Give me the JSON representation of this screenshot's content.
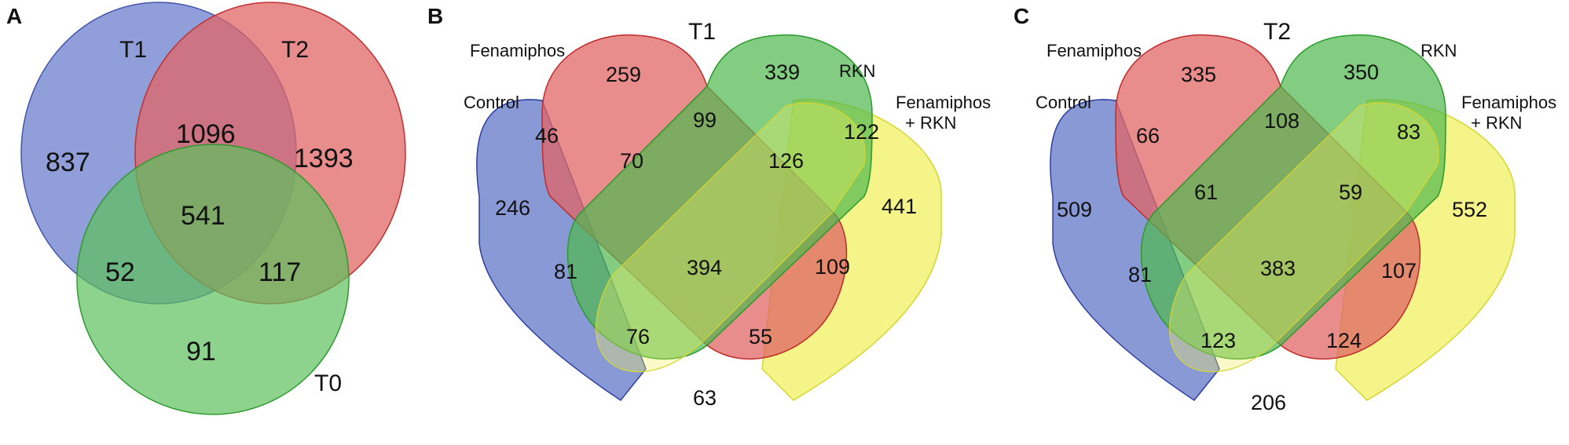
{
  "panels": [
    {
      "letter": "A",
      "sets": [
        "T1",
        "T2",
        "T0"
      ],
      "colors": {
        "T1": "#6b7fcc",
        "T2": "#e06666",
        "T0": "#59b959"
      },
      "regions": {
        "T1_only": "837",
        "T2_only": "1393",
        "T0_only": "91",
        "T1_T2": "1096",
        "T1_T0": "52",
        "T2_T0": "117",
        "T1_T2_T0": "541"
      }
    },
    {
      "letter": "B",
      "title": "T1",
      "sets": [
        "Control",
        "Fenamiphos",
        "RKN",
        "Fenamiphos",
        "+ RKN"
      ],
      "colors": {
        "control": "#6b7fcc",
        "fenamiphos": "#e06666",
        "rkn": "#59b959",
        "fen_rkn": "#f0f060"
      },
      "regions": {
        "control_only": "246",
        "fenamiphos_only": "259",
        "rkn_only": "339",
        "fen_rkn_only": "441",
        "control_fenamiphos": "46",
        "fenamiphos_rkn": "99",
        "rkn_fen_rkn": "122",
        "control_fen_rkn": "63",
        "control_fen_rkn_a": "81",
        "fenamiphos_fen_rkn": "109",
        "c_f_r": "70",
        "f_r_fr": "126",
        "all": "394",
        "c_r_fr": "76",
        "c_f_fr": "55"
      }
    },
    {
      "letter": "C",
      "title": "T2",
      "sets": [
        "Control",
        "Fenamiphos",
        "RKN",
        "Fenamiphos",
        "+ RKN"
      ],
      "colors": {
        "control": "#6b7fcc",
        "fenamiphos": "#e06666",
        "rkn": "#59b959",
        "fen_rkn": "#f0f060"
      },
      "regions": {
        "control_only": "509",
        "fenamiphos_only": "335",
        "rkn_only": "350",
        "fen_rkn_only": "552",
        "control_fenamiphos": "66",
        "fenamiphos_rkn": "108",
        "rkn_fen_rkn": "83",
        "control_fen_rkn": "206",
        "control_fen_rkn_a": "81",
        "fenamiphos_fen_rkn": "107",
        "c_f_r": "61",
        "f_r_fr": "59",
        "all": "383",
        "c_r_fr": "123",
        "c_f_fr": "124"
      }
    }
  ]
}
